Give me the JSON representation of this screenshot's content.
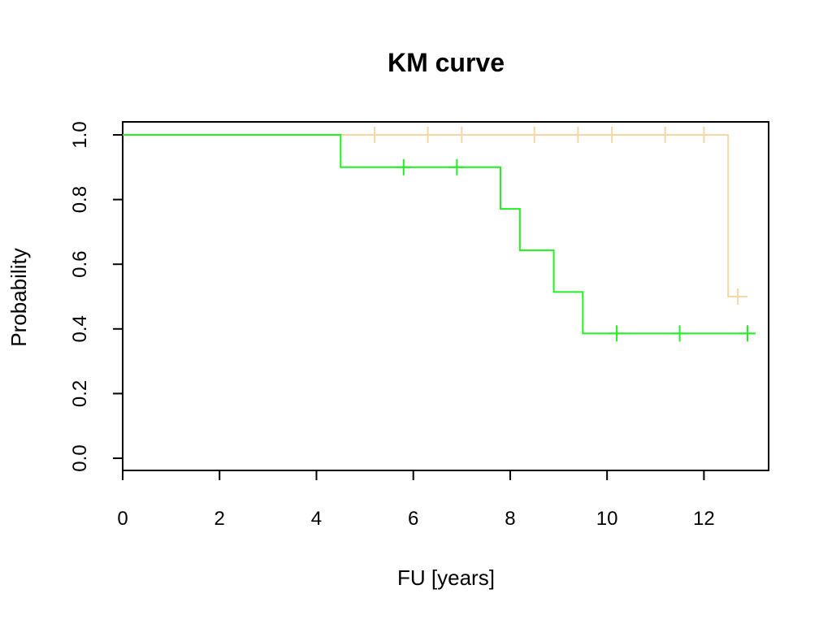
{
  "chart_data": {
    "type": "line",
    "subtype": "kaplan-meier-step",
    "title": "KM curve",
    "xlabel": "FU [years]",
    "ylabel": "Probability",
    "xlim": [
      0,
      13
    ],
    "ylim": [
      0,
      1
    ],
    "x_ticks": [
      "0",
      "2",
      "4",
      "6",
      "8",
      "10",
      "12"
    ],
    "y_ticks": [
      "0.0",
      "0.2",
      "0.4",
      "0.6",
      "0.8",
      "1.0"
    ],
    "grid": false,
    "legend": "none",
    "series": [
      {
        "color": "#f5d7a6",
        "steps": [
          [
            0,
            1.0
          ],
          [
            12.5,
            0.5
          ],
          [
            12.9,
            0.5
          ]
        ],
        "censored": [
          [
            5.2,
            1.0
          ],
          [
            6.3,
            1.0
          ],
          [
            7.0,
            1.0
          ],
          [
            8.5,
            1.0
          ],
          [
            9.4,
            1.0
          ],
          [
            10.1,
            1.0
          ],
          [
            11.2,
            1.0
          ],
          [
            12.0,
            1.0
          ],
          [
            12.7,
            0.5
          ]
        ]
      },
      {
        "color": "#22ee22",
        "steps": [
          [
            0,
            1.0
          ],
          [
            4.5,
            0.9
          ],
          [
            7.8,
            0.771
          ],
          [
            8.2,
            0.643
          ],
          [
            8.9,
            0.514
          ],
          [
            9.5,
            0.386
          ],
          [
            13.0,
            0.386
          ]
        ],
        "censored": [
          [
            5.8,
            0.9
          ],
          [
            6.9,
            0.9
          ],
          [
            10.2,
            0.386
          ],
          [
            11.5,
            0.386
          ],
          [
            12.9,
            0.386
          ]
        ]
      }
    ]
  }
}
